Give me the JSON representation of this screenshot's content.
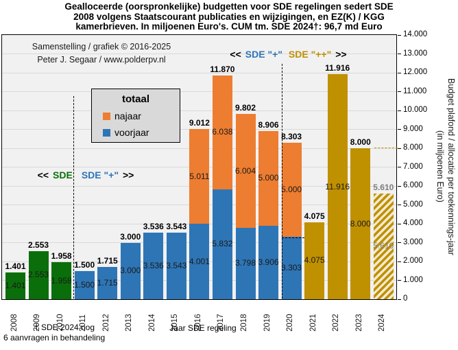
{
  "title": {
    "line1": "Gealloceerde (oorspronkelijke) budgetten voor SDE regelingen sedert SDE",
    "line2": "2008 volgens Staatscourant publicaties en wijzigingen, en EZ(K) / KGG",
    "line3": "kamerbrieven. In miljoenen Euro's. CUM tm. SDE 2024†: 96,7 md Euro"
  },
  "attribution": {
    "line1": "Samenstelling / grafiek © 2016-2025",
    "line2": "Peter J. Segaar / www.polderpv.nl"
  },
  "legend": {
    "title": "totaal",
    "items": [
      {
        "label": "najaar",
        "color": "#ed7d31"
      },
      {
        "label": "voorjaar",
        "color": "#2e75b6"
      }
    ]
  },
  "era_labels": {
    "left": {
      "open": "<<",
      "sde": "SDE",
      "plus": "SDE \"+\"",
      "close": ">>"
    },
    "right": {
      "open": "<<",
      "plus": "SDE \"+\"",
      "plusplus": "SDE \"++\"",
      "close": ">>"
    }
  },
  "axes": {
    "x_title": "Jaar SDE regeling",
    "y_title_line1": "Budget plafond / allocatie per toekennings-jaar",
    "y_title_line2": "(in miljoenen Euro)",
    "y_ticks": [
      "0",
      "1.000",
      "2.000",
      "3.000",
      "4.000",
      "5.000",
      "6.000",
      "7.000",
      "8.000",
      "9.000",
      "10.000",
      "11.000",
      "12.000",
      "13.000",
      "14.000"
    ]
  },
  "footnote": {
    "line1": "† SDE 2024 nog",
    "line2": "6 aanvragen in behandeling"
  },
  "colors": {
    "green": "#0a6f0a",
    "blue": "#2e75b6",
    "orange": "#ed7d31",
    "gold": "#bf9000",
    "hatch_bg": "#f3ead0",
    "gray_label": "#7f7f7f",
    "grid": "#d9d9d9",
    "plot_bg": "#f1f1f1",
    "legend_bg": "#d9d9d9"
  },
  "chart_data": {
    "type": "bar",
    "stacked": true,
    "title": "Gealloceerde (oorspronkelijke) budgetten voor SDE regelingen sedert SDE 2008",
    "xlabel": "Jaar SDE regeling",
    "ylabel": "Budget plafond / allocatie per toekennings-jaar (in miljoenen Euro)",
    "ylim": [
      0,
      14000
    ],
    "grid": true,
    "legend_position": "upper-left",
    "cumulative_total_label": "96,7 md Euro",
    "categories": [
      "2008",
      "2009",
      "2010",
      "2011",
      "2012",
      "2013",
      "2014",
      "2015",
      "2016",
      "2017",
      "2018",
      "2019",
      "2020",
      "2021",
      "2022",
      "2023",
      "2024"
    ],
    "bars": [
      {
        "year": "2008",
        "era": "SDE",
        "total": 1401,
        "total_label": "1.401",
        "segments": [
          {
            "series": "totaal",
            "value": 1401,
            "label": "1.401",
            "color_key": "green"
          }
        ]
      },
      {
        "year": "2009",
        "era": "SDE",
        "total": 2553,
        "total_label": "2.553",
        "segments": [
          {
            "series": "totaal",
            "value": 2553,
            "label": "2.553",
            "color_key": "green"
          }
        ]
      },
      {
        "year": "2010",
        "era": "SDE",
        "total": 1958,
        "total_label": "1.958",
        "segments": [
          {
            "series": "totaal",
            "value": 1958,
            "label": "1.958",
            "color_key": "green"
          }
        ]
      },
      {
        "year": "2011",
        "era": "SDE+",
        "total": 1500,
        "total_label": "1.500",
        "segments": [
          {
            "series": "voorjaar",
            "value": 1500,
            "label": "1.500",
            "color_key": "blue"
          }
        ]
      },
      {
        "year": "2012",
        "era": "SDE+",
        "total": 1715,
        "total_label": "1.715",
        "segments": [
          {
            "series": "voorjaar",
            "value": 1715,
            "label": "1.715",
            "color_key": "blue"
          }
        ]
      },
      {
        "year": "2013",
        "era": "SDE+",
        "total": 3000,
        "total_label": "3.000",
        "segments": [
          {
            "series": "voorjaar",
            "value": 3000,
            "label": "3.000",
            "color_key": "blue"
          }
        ]
      },
      {
        "year": "2014",
        "era": "SDE+",
        "total": 3536,
        "total_label": "3.536",
        "segments": [
          {
            "series": "voorjaar",
            "value": 3536,
            "label": "3.536",
            "color_key": "blue"
          }
        ]
      },
      {
        "year": "2015",
        "era": "SDE+",
        "total": 3543,
        "total_label": "3.543",
        "segments": [
          {
            "series": "voorjaar",
            "value": 3543,
            "label": "3.543",
            "color_key": "blue"
          }
        ]
      },
      {
        "year": "2016",
        "era": "SDE+",
        "total": 9012,
        "total_label": "9.012",
        "segments": [
          {
            "series": "voorjaar",
            "value": 4001,
            "label": "4.001",
            "color_key": "blue"
          },
          {
            "series": "najaar",
            "value": 5011,
            "label": "5.011",
            "color_key": "orange"
          }
        ]
      },
      {
        "year": "2017",
        "era": "SDE+",
        "total": 11870,
        "total_label": "11.870",
        "segments": [
          {
            "series": "voorjaar",
            "value": 5832,
            "label": "5.832",
            "color_key": "blue"
          },
          {
            "series": "najaar",
            "value": 6038,
            "label": "6.038",
            "color_key": "orange"
          }
        ]
      },
      {
        "year": "2018",
        "era": "SDE+",
        "total": 9802,
        "total_label": "9.802",
        "segments": [
          {
            "series": "voorjaar",
            "value": 3798,
            "label": "3.798",
            "color_key": "blue"
          },
          {
            "series": "najaar",
            "value": 6004,
            "label": "6.004",
            "color_key": "orange"
          }
        ]
      },
      {
        "year": "2019",
        "era": "SDE+",
        "total": 8906,
        "total_label": "8.906",
        "segments": [
          {
            "series": "voorjaar",
            "value": 3906,
            "label": "3.906",
            "color_key": "blue"
          },
          {
            "series": "najaar",
            "value": 5000,
            "label": "5.000",
            "color_key": "orange"
          }
        ]
      },
      {
        "year": "2020",
        "era": "SDE++",
        "total": 8303,
        "total_label": "8.303",
        "segments": [
          {
            "series": "voorjaar",
            "value": 3303,
            "label": "3.303",
            "color_key": "blue"
          },
          {
            "series": "najaar",
            "value": 5000,
            "label": "5.000",
            "color_key": "orange"
          }
        ]
      },
      {
        "year": "2021",
        "era": "SDE++",
        "total": 4075,
        "total_label": "4.075",
        "segments": [
          {
            "series": "totaal",
            "value": 4075,
            "label": "4.075",
            "color_key": "gold"
          }
        ]
      },
      {
        "year": "2022",
        "era": "SDE++",
        "total": 11916,
        "total_label": "11.916",
        "segments": [
          {
            "series": "totaal",
            "value": 11916,
            "label": "11.916",
            "color_key": "gold"
          }
        ]
      },
      {
        "year": "2023",
        "era": "SDE++",
        "total": 8000,
        "total_label": "8.000",
        "segments": [
          {
            "series": "totaal",
            "value": 8000,
            "label": "8.000",
            "color_key": "gold"
          }
        ]
      },
      {
        "year": "2024",
        "era": "SDE++",
        "total": 5610,
        "total_label": "5.610",
        "pending": true,
        "label_gray": true,
        "segments": [
          {
            "series": "totaal",
            "value": 5610,
            "label": "5.610",
            "color_key": "hatch"
          }
        ]
      }
    ],
    "annotations": {
      "divider_sde_sdeplus_x_year": "2010/2011",
      "divider_sdeplus_sdeplusplus_x_year": "2019/2020",
      "dashed_level_2020": 3303,
      "gold_dashed_level_right": 8000
    }
  }
}
